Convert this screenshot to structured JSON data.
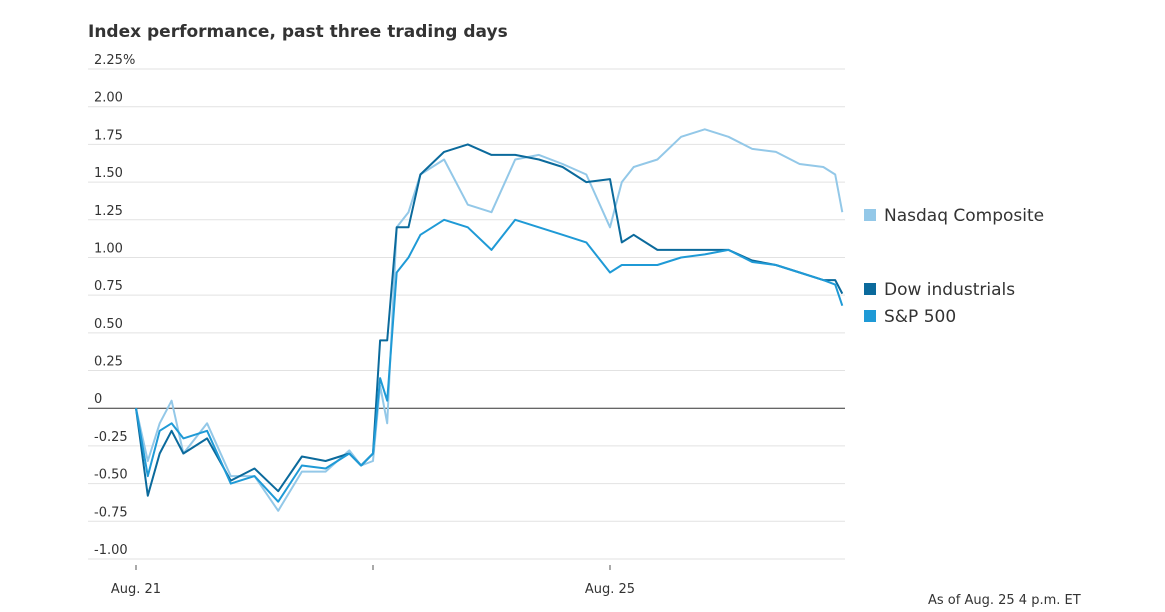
{
  "chart_data": {
    "type": "line",
    "title": "Index performance, past three trading days",
    "note": "As of Aug. 25 4 p.m. ET",
    "x": [
      0,
      0.05,
      0.1,
      0.15,
      0.2,
      0.3,
      0.4,
      0.5,
      0.6,
      0.7,
      0.8,
      0.9,
      0.95,
      1.0,
      1.03,
      1.06,
      1.1,
      1.15,
      1.2,
      1.3,
      1.4,
      1.5,
      1.6,
      1.7,
      1.8,
      1.9,
      2.0,
      2.05,
      2.1,
      2.2,
      2.3,
      2.4,
      2.5,
      2.6,
      2.7,
      2.8,
      2.9,
      2.95,
      2.98
    ],
    "xlim": [
      0,
      3
    ],
    "xticks": [
      {
        "value": 0,
        "label": "Aug. 21"
      },
      {
        "value": 1,
        "label": null
      },
      {
        "value": 2,
        "label": "Aug. 25"
      }
    ],
    "ylim": [
      -1,
      2.25
    ],
    "yticks": [
      {
        "value": 2.25,
        "label": "2.25%"
      },
      {
        "value": 2,
        "label": "2.00"
      },
      1.75,
      {
        "value": 1.5,
        "label": "1.50"
      },
      1.25,
      {
        "value": 1,
        "label": "1.00"
      },
      0.75,
      {
        "value": 0.5,
        "label": "0.50"
      },
      0.25,
      0,
      -0.25,
      {
        "value": -0.5,
        "label": "-0.50"
      },
      -0.75,
      {
        "value": -1,
        "label": "-1.00"
      }
    ],
    "grid": true,
    "series": [
      {
        "name": "Nasdaq Composite",
        "color": "#93c8e8",
        "values": [
          0,
          -0.35,
          -0.1,
          0.05,
          -0.3,
          -0.1,
          -0.45,
          -0.45,
          -0.68,
          -0.42,
          -0.42,
          -0.28,
          -0.38,
          -0.35,
          0.15,
          -0.1,
          1.2,
          1.3,
          1.55,
          1.65,
          1.35,
          1.3,
          1.65,
          1.68,
          1.62,
          1.55,
          1.2,
          1.5,
          1.6,
          1.65,
          1.8,
          1.85,
          1.8,
          1.72,
          1.7,
          1.62,
          1.6,
          1.55,
          1.3
        ]
      },
      {
        "name": "Dow industrials",
        "color": "#0b6a9c",
        "values": [
          0,
          -0.58,
          -0.3,
          -0.15,
          -0.3,
          -0.2,
          -0.48,
          -0.4,
          -0.55,
          -0.32,
          -0.35,
          -0.3,
          -0.38,
          -0.3,
          0.45,
          0.45,
          1.2,
          1.2,
          1.55,
          1.7,
          1.75,
          1.68,
          1.68,
          1.65,
          1.6,
          1.5,
          1.52,
          1.1,
          1.15,
          1.05,
          1.05,
          1.05,
          1.05,
          0.98,
          0.95,
          0.9,
          0.85,
          0.85,
          0.76
        ]
      },
      {
        "name": "S&P 500",
        "color": "#1f9ad6",
        "values": [
          0,
          -0.45,
          -0.15,
          -0.1,
          -0.2,
          -0.15,
          -0.5,
          -0.45,
          -0.62,
          -0.38,
          -0.4,
          -0.3,
          -0.38,
          -0.3,
          0.2,
          0.05,
          0.9,
          1.0,
          1.15,
          1.25,
          1.2,
          1.05,
          1.25,
          1.2,
          1.15,
          1.1,
          0.9,
          0.95,
          0.95,
          0.95,
          1.0,
          1.02,
          1.05,
          0.97,
          0.95,
          0.9,
          0.85,
          0.82,
          0.68
        ]
      }
    ]
  }
}
